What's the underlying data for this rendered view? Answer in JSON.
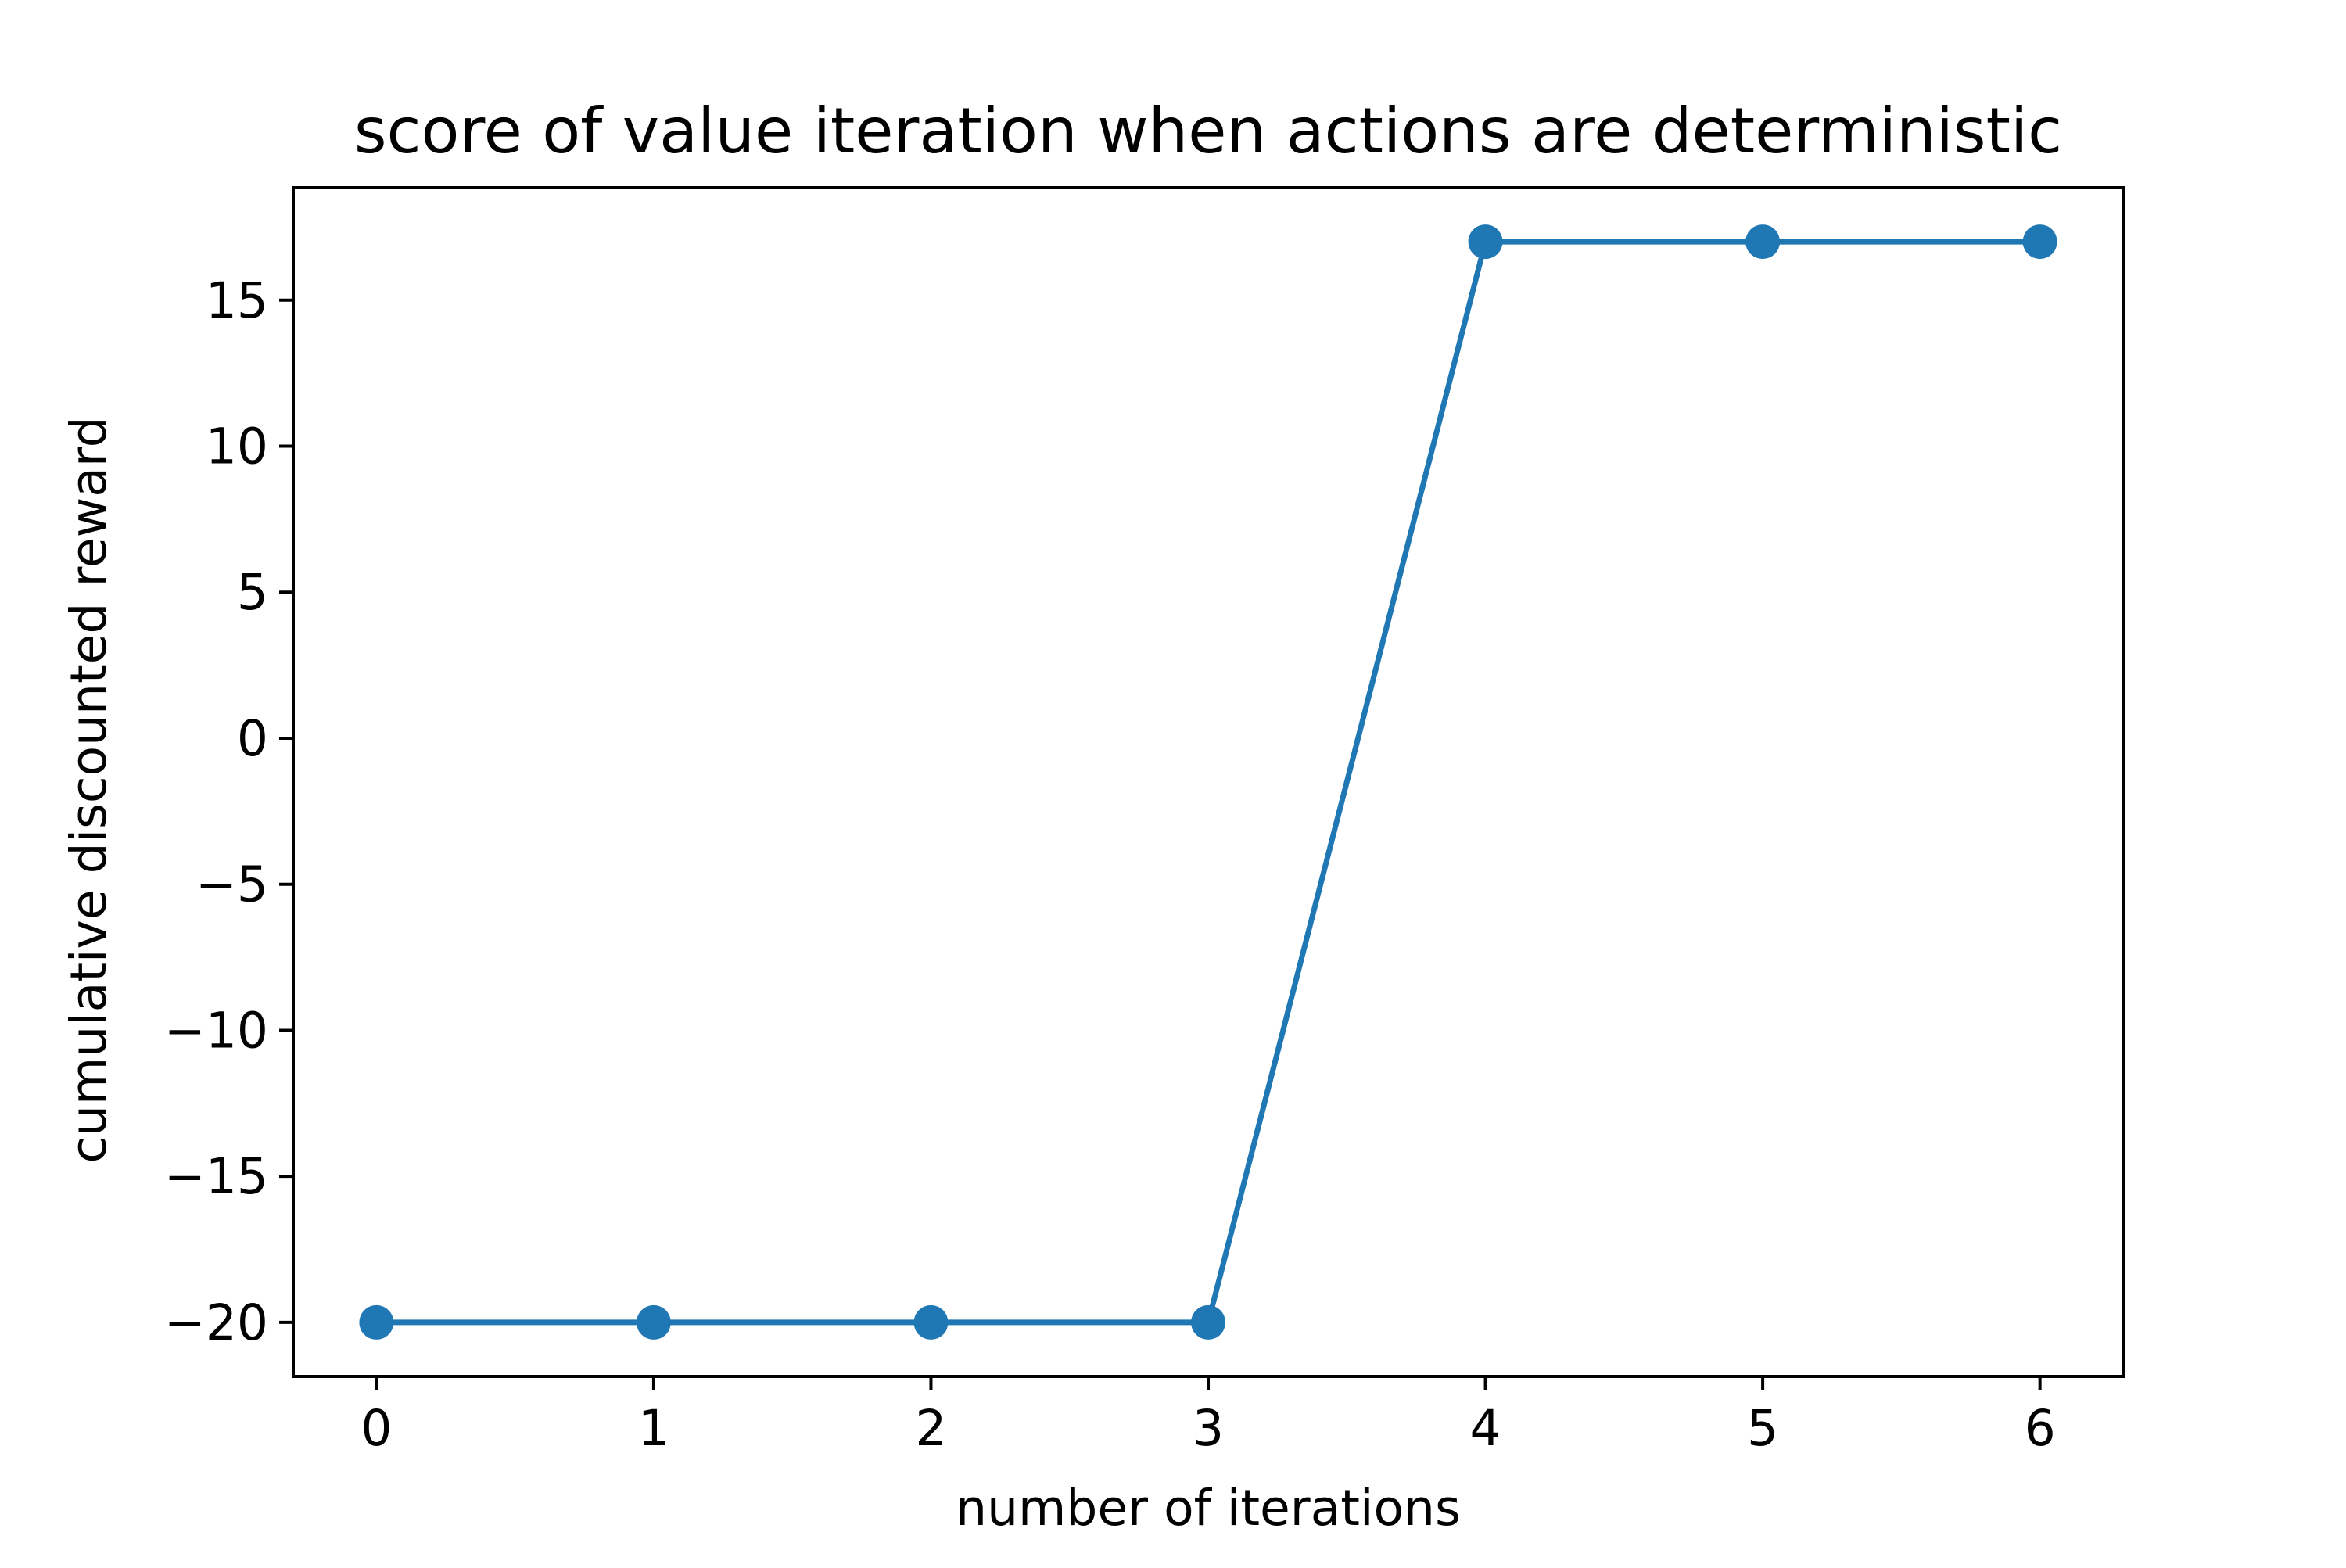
{
  "chart_data": {
    "type": "line",
    "title": "score of value iteration when actions are deterministic",
    "xlabel": "number of iterations",
    "ylabel": "cumulative discounted reward",
    "x": [
      0,
      1,
      2,
      3,
      4,
      5,
      6
    ],
    "series": [
      {
        "values": [
          -20,
          -20,
          -20,
          -20,
          17,
          17,
          17
        ]
      }
    ],
    "xlim": [
      -0.3,
      6.3
    ],
    "ylim": [
      -21.85,
      18.85
    ],
    "xticks": [
      0,
      1,
      2,
      3,
      4,
      5,
      6
    ],
    "xtick_labels": [
      "0",
      "1",
      "2",
      "3",
      "4",
      "5",
      "6"
    ],
    "yticks": [
      -20,
      -15,
      -10,
      -5,
      0,
      5,
      10,
      15
    ],
    "ytick_labels": [
      "−20",
      "−15",
      "−10",
      "−5",
      "0",
      "5",
      "10",
      "15"
    ],
    "grid": false,
    "legend": false,
    "line_color": "#1f77b4",
    "marker": "circle"
  }
}
